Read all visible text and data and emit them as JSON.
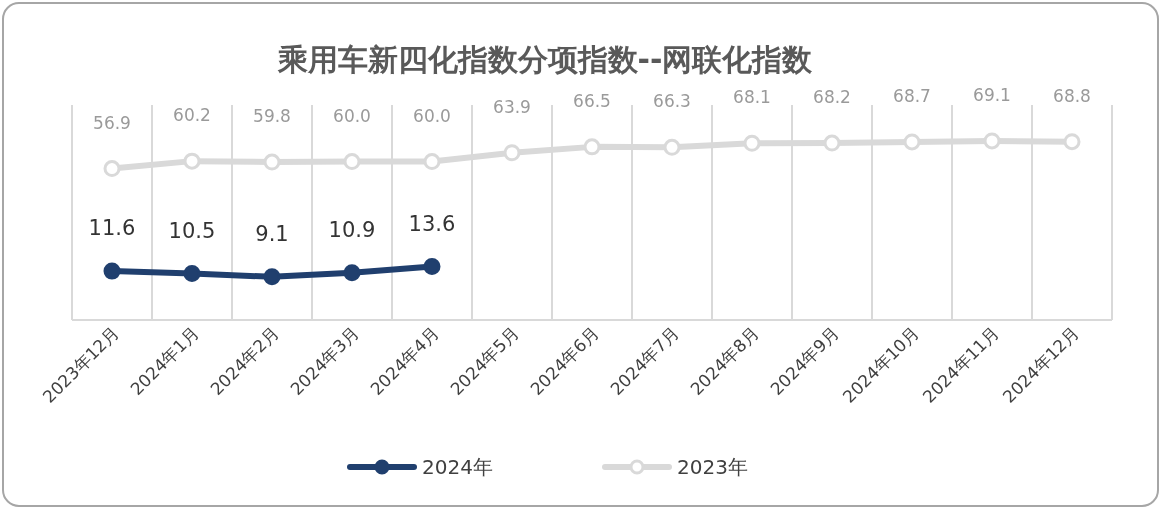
{
  "chart_data": {
    "type": "line",
    "title": "乘用车新四化指数分项指数--网联化指数",
    "categories": [
      "2023年12月",
      "2024年1月",
      "2024年2月",
      "2024年3月",
      "2024年4月",
      "2024年5月",
      "2024年6月",
      "2024年7月",
      "2024年8月",
      "2024年9月",
      "2024年10月",
      "2024年11月",
      "2024年12月"
    ],
    "series": [
      {
        "name": "2024年",
        "color": "#203f6e",
        "values": [
          11.6,
          10.5,
          9.1,
          10.9,
          13.6,
          null,
          null,
          null,
          null,
          null,
          null,
          null,
          null
        ],
        "value_labels": [
          "11.6",
          "10.5",
          "9.1",
          "10.9",
          "13.6",
          null,
          null,
          null,
          null,
          null,
          null,
          null,
          null
        ]
      },
      {
        "name": "2023年",
        "color": "#d9d9d9",
        "values": [
          56.9,
          60.2,
          59.8,
          60.0,
          60.0,
          63.9,
          66.5,
          66.3,
          68.1,
          68.2,
          68.7,
          69.1,
          68.8
        ],
        "value_labels": [
          "56.9",
          "60.2",
          "59.8",
          "60.0",
          "60.0",
          "63.9",
          "66.5",
          "66.3",
          "68.1",
          "68.2",
          "68.7",
          "69.1",
          "68.8"
        ]
      }
    ],
    "ylim": [
      -10,
      85
    ],
    "grid": "x",
    "legend": "bottom",
    "marker": "circle",
    "line_style": "solid"
  }
}
